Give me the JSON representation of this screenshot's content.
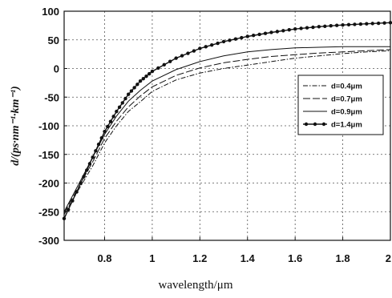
{
  "chart_data": {
    "type": "line",
    "xlabel": "wavelength/μm",
    "ylabel": "d/(ps·nm⁻¹·km⁻¹)",
    "xlim": [
      0.63,
      2.0
    ],
    "ylim": [
      -300,
      100
    ],
    "x_ticks": [
      0.8,
      1,
      1.2,
      1.4,
      1.6,
      1.8,
      2
    ],
    "x_tick_labels": [
      "0.8",
      "1",
      "1.2",
      "1.4",
      "1.6",
      "1.8",
      "2"
    ],
    "y_ticks": [
      100,
      50,
      0,
      -50,
      -100,
      -150,
      -200,
      -250,
      -300
    ],
    "y_tick_labels": [
      "100",
      "50",
      "0",
      "-50",
      "-100",
      "-150",
      "-200",
      "-250",
      "-300"
    ],
    "grid": true,
    "legend_position": "right",
    "series": [
      {
        "name": "d=0.4μm",
        "style": "dash-dot",
        "x": [
          0.63,
          0.7,
          0.75,
          0.8,
          0.85,
          0.9,
          0.95,
          1.0,
          1.1,
          1.2,
          1.3,
          1.4,
          1.5,
          1.6,
          1.7,
          1.8,
          1.9,
          2.0
        ],
        "y": [
          -255,
          -205,
          -170,
          -130,
          -100,
          -75,
          -58,
          -40,
          -20,
          -8,
          0,
          6,
          12,
          18,
          22,
          26,
          29,
          31
        ]
      },
      {
        "name": "d=0.7μm",
        "style": "long-dash",
        "x": [
          0.63,
          0.7,
          0.75,
          0.8,
          0.85,
          0.9,
          0.95,
          1.0,
          1.1,
          1.2,
          1.3,
          1.4,
          1.5,
          1.6,
          1.7,
          1.8,
          1.9,
          2.0
        ],
        "y": [
          -252,
          -200,
          -163,
          -122,
          -92,
          -67,
          -48,
          -32,
          -12,
          1,
          10,
          16,
          21,
          24,
          27,
          29,
          31,
          33
        ]
      },
      {
        "name": "d=0.9μm",
        "style": "solid",
        "x": [
          0.63,
          0.7,
          0.75,
          0.8,
          0.85,
          0.9,
          0.95,
          1.0,
          1.1,
          1.2,
          1.3,
          1.4,
          1.5,
          1.6,
          1.7,
          1.8,
          1.9,
          2.0
        ],
        "y": [
          -250,
          -195,
          -155,
          -115,
          -83,
          -57,
          -38,
          -22,
          -2,
          12,
          22,
          29,
          33,
          36,
          37,
          38,
          38,
          38
        ]
      },
      {
        "name": "d=1.4μm",
        "style": "dotted-marker",
        "x": [
          0.63,
          0.7,
          0.75,
          0.8,
          0.85,
          0.9,
          0.95,
          1.0,
          1.1,
          1.2,
          1.3,
          1.4,
          1.5,
          1.6,
          1.7,
          1.8,
          1.9,
          2.0
        ],
        "y": [
          -262,
          -200,
          -155,
          -110,
          -75,
          -45,
          -22,
          -5,
          18,
          35,
          47,
          56,
          63,
          69,
          73,
          76,
          78,
          80
        ]
      }
    ]
  }
}
